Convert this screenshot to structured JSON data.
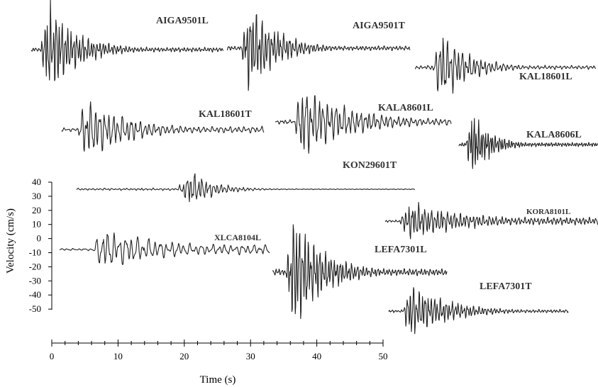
{
  "chart_data": {
    "type": "line",
    "xlabel": "Time (s)",
    "ylabel": "Velocity (cm/s)",
    "xlim": [
      0,
      50
    ],
    "ylim": [
      -50,
      40
    ],
    "x_ticks": [
      "0",
      "10",
      "20",
      "30",
      "40",
      "50"
    ],
    "y_ticks": [
      "40",
      "30",
      "20",
      "10",
      "0",
      "-10",
      "-20",
      "-30",
      "-40",
      "-50"
    ],
    "series": [
      {
        "name": "AIGA9501L"
      },
      {
        "name": "AIGA9501T"
      },
      {
        "name": "KAL18601L"
      },
      {
        "name": "KAL18601T"
      },
      {
        "name": "KALA8601L"
      },
      {
        "name": "KALA8606L"
      },
      {
        "name": "KON29601T"
      },
      {
        "name": "KORA8101L"
      },
      {
        "name": "XLCA8104L"
      },
      {
        "name": "LEFA7301L"
      },
      {
        "name": "LEFA7301T"
      }
    ]
  },
  "colors": {
    "trace": "#222222",
    "axis": "#000000",
    "label": "#333333"
  }
}
